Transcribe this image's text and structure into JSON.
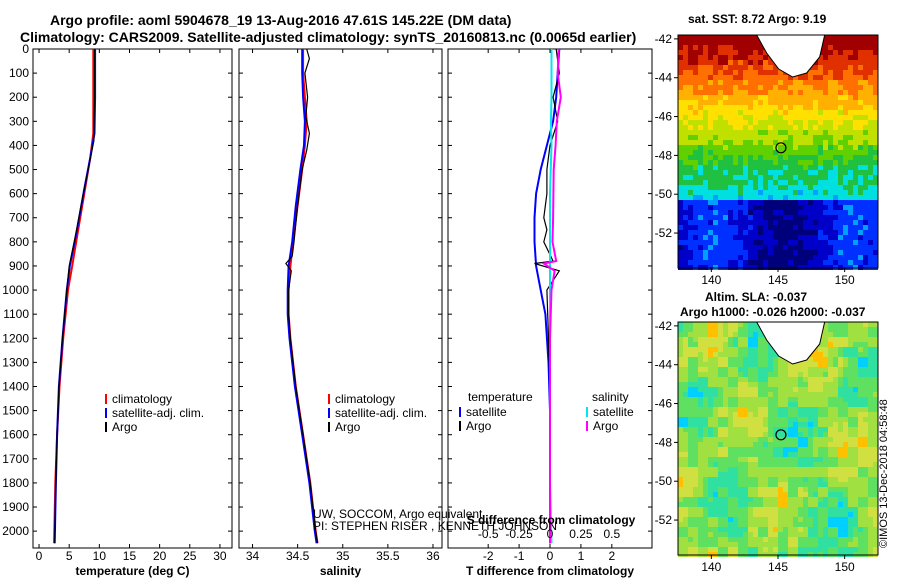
{
  "header": {
    "title_line1": "Argo profile: aoml 5904678_19 13-Aug-2016 47.61S 145.22E (DM data)",
    "title_line2": "Climatology: CARS2009. Satellite-adjusted climatology: synTS_20160813.nc (0.0065d earlier)"
  },
  "side": {
    "sst_title": "sat. SST: 8.72 Argo: 9.19",
    "sla_title1": "Altim. SLA: -0.037",
    "sla_title2": "Argo h1000: -0.026 h2000: -0.037"
  },
  "stamp": "©IMOS 13-Dec-2018 04:58:48",
  "notes": {
    "line1": "UW, SOCCOM, Argo equivalent",
    "line2": "PI: STEPHEN RISER , KENNETH JOHNSON"
  },
  "legends": {
    "temp": [
      "climatology",
      "satellite-adj. clim.",
      "Argo"
    ],
    "sal": [
      "climatology",
      "satellite-adj. clim.",
      "Argo"
    ],
    "diff_temp_header": "temperature",
    "diff_sal_header": "salinity",
    "diff_temp": [
      "satellite",
      "Argo"
    ],
    "diff_sal": [
      "satellite",
      "Argo"
    ]
  },
  "colors": {
    "climatology": "#ff0000",
    "satellite": "#0000ff",
    "argo": "#000000",
    "sal_satellite": "#00e5ee",
    "sal_argo": "#ff00ff"
  },
  "chart_data": [
    {
      "type": "line",
      "name": "temperature",
      "xlabel": "temperature (deg C)",
      "xlim": [
        -1,
        32
      ],
      "ylim": [
        2070,
        0
      ],
      "xticks": [
        0,
        5,
        10,
        15,
        20,
        25,
        30
      ],
      "xtick_labels": [
        "0",
        "5",
        "10",
        "15",
        "20",
        "25",
        "30"
      ],
      "yticks": [
        0,
        100,
        200,
        300,
        400,
        500,
        600,
        700,
        800,
        900,
        1000,
        1100,
        1200,
        1300,
        1400,
        1500,
        1600,
        1700,
        1800,
        1900,
        2000
      ],
      "series": [
        {
          "key": "climatology",
          "points": [
            [
              9.0,
              0
            ],
            [
              9.0,
              200
            ],
            [
              9.0,
              350
            ],
            [
              8.5,
              450
            ],
            [
              7.5,
              600
            ],
            [
              6.5,
              750
            ],
            [
              5.5,
              900
            ],
            [
              4.8,
              1000
            ],
            [
              4.0,
              1200
            ],
            [
              3.4,
              1400
            ],
            [
              3.0,
              1600
            ],
            [
              2.7,
              1800
            ],
            [
              2.5,
              2050
            ]
          ]
        },
        {
          "key": "satellite",
          "points": [
            [
              9.3,
              0
            ],
            [
              9.3,
              200
            ],
            [
              9.2,
              350
            ],
            [
              8.5,
              450
            ],
            [
              7.5,
              580
            ],
            [
              6.3,
              750
            ],
            [
              5.1,
              900
            ],
            [
              4.6,
              1000
            ],
            [
              3.9,
              1200
            ],
            [
              3.3,
              1400
            ],
            [
              3.0,
              1600
            ],
            [
              2.8,
              1800
            ],
            [
              2.6,
              2050
            ]
          ]
        },
        {
          "key": "argo",
          "points": [
            [
              9.2,
              0
            ],
            [
              9.2,
              200
            ],
            [
              9.1,
              380
            ],
            [
              8.3,
              480
            ],
            [
              7.2,
              620
            ],
            [
              6.0,
              780
            ],
            [
              5.0,
              900
            ],
            [
              4.6,
              1000
            ],
            [
              3.9,
              1200
            ],
            [
              3.3,
              1400
            ],
            [
              3.0,
              1600
            ],
            [
              2.8,
              1800
            ],
            [
              2.6,
              2050
            ]
          ]
        }
      ]
    },
    {
      "type": "line",
      "name": "salinity",
      "xlabel": "salinity",
      "xlim": [
        33.85,
        36.1
      ],
      "ylim": [
        2070,
        0
      ],
      "xticks": [
        34,
        34.5,
        35,
        35.5,
        36
      ],
      "xtick_labels": [
        "34",
        "34.5",
        "35",
        "35.5",
        "36"
      ],
      "series": [
        {
          "key": "climatology",
          "points": [
            [
              34.56,
              0
            ],
            [
              34.56,
              100
            ],
            [
              34.58,
              200
            ],
            [
              34.6,
              300
            ],
            [
              34.58,
              400
            ],
            [
              34.55,
              500
            ],
            [
              34.5,
              650
            ],
            [
              34.45,
              800
            ],
            [
              34.42,
              900
            ],
            [
              34.4,
              1000
            ],
            [
              34.4,
              1100
            ],
            [
              34.42,
              1200
            ],
            [
              34.48,
              1400
            ],
            [
              34.56,
              1600
            ],
            [
              34.64,
              1800
            ],
            [
              34.7,
              2000
            ],
            [
              34.72,
              2050
            ]
          ]
        },
        {
          "key": "satellite",
          "points": [
            [
              34.55,
              0
            ],
            [
              34.55,
              100
            ],
            [
              34.56,
              200
            ],
            [
              34.58,
              300
            ],
            [
              34.57,
              400
            ],
            [
              34.53,
              500
            ],
            [
              34.48,
              650
            ],
            [
              34.44,
              800
            ],
            [
              34.4,
              900
            ],
            [
              34.39,
              1000
            ],
            [
              34.39,
              1100
            ],
            [
              34.41,
              1200
            ],
            [
              34.47,
              1400
            ],
            [
              34.55,
              1600
            ],
            [
              34.63,
              1800
            ],
            [
              34.69,
              2000
            ],
            [
              34.71,
              2050
            ]
          ]
        },
        {
          "key": "argo",
          "points": [
            [
              34.6,
              0
            ],
            [
              34.63,
              40
            ],
            [
              34.58,
              100
            ],
            [
              34.61,
              200
            ],
            [
              34.59,
              280
            ],
            [
              34.63,
              350
            ],
            [
              34.6,
              420
            ],
            [
              34.55,
              500
            ],
            [
              34.5,
              650
            ],
            [
              34.46,
              800
            ],
            [
              34.44,
              860
            ],
            [
              34.37,
              890
            ],
            [
              34.43,
              920
            ],
            [
              34.4,
              1000
            ],
            [
              34.4,
              1100
            ],
            [
              34.42,
              1200
            ],
            [
              34.48,
              1400
            ],
            [
              34.56,
              1600
            ],
            [
              34.64,
              1800
            ],
            [
              34.7,
              2000
            ],
            [
              34.72,
              2050
            ]
          ]
        }
      ]
    },
    {
      "type": "line",
      "name": "difference",
      "xlabel": "T difference from climatology",
      "top_label": "S difference from climatology",
      "xlim": [
        -3.3,
        3.3
      ],
      "ylim": [
        2070,
        0
      ],
      "xticks": [
        -2,
        -1,
        0,
        1,
        2
      ],
      "xtick_labels": [
        "-2",
        "-1",
        "0",
        "1",
        "2"
      ],
      "top_ticks": [
        -0.5,
        -0.25,
        0,
        0.25,
        0.5
      ],
      "top_tick_labels": [
        "-0.5",
        "-0.25",
        "0",
        "0.25",
        "0.5"
      ],
      "series": [
        {
          "key": "satellite",
          "points": [
            [
              0.3,
              0
            ],
            [
              0.25,
              100
            ],
            [
              0.2,
              200
            ],
            [
              0.1,
              300
            ],
            [
              -0.1,
              400
            ],
            [
              -0.3,
              500
            ],
            [
              -0.45,
              600
            ],
            [
              -0.5,
              700
            ],
            [
              -0.5,
              800
            ],
            [
              -0.45,
              900
            ],
            [
              -0.3,
              1000
            ],
            [
              -0.15,
              1100
            ],
            [
              -0.05,
              1300
            ],
            [
              0,
              1500
            ],
            [
              0,
              2050
            ]
          ]
        },
        {
          "key": "argo",
          "points": [
            [
              0.2,
              0
            ],
            [
              0.3,
              100
            ],
            [
              0.1,
              200
            ],
            [
              0.25,
              300
            ],
            [
              0,
              400
            ],
            [
              -0.1,
              500
            ],
            [
              -0.1,
              600
            ],
            [
              -0.2,
              700
            ],
            [
              -0.1,
              750
            ],
            [
              -0.2,
              800
            ],
            [
              0.1,
              880
            ],
            [
              -0.5,
              890
            ],
            [
              0.3,
              920
            ],
            [
              -0.1,
              1000
            ],
            [
              -0.05,
              1200
            ],
            [
              0,
              1400
            ],
            [
              0,
              2050
            ]
          ]
        },
        {
          "key": "sal_satellite",
          "points": [
            [
              0.05,
              0
            ],
            [
              0.05,
              100
            ],
            [
              0.05,
              200
            ],
            [
              0.03,
              300
            ],
            [
              0.05,
              400
            ],
            [
              0.0,
              600
            ],
            [
              0.0,
              900
            ],
            [
              0.0,
              1200
            ],
            [
              0.0,
              1500
            ],
            [
              0.0,
              1800
            ],
            [
              0.05,
              2050
            ]
          ]
        },
        {
          "key": "sal_argo",
          "points": [
            [
              0.28,
              0
            ],
            [
              0.25,
              100
            ],
            [
              0.35,
              200
            ],
            [
              0.22,
              300
            ],
            [
              0.18,
              400
            ],
            [
              0.12,
              500
            ],
            [
              0.1,
              700
            ],
            [
              0.08,
              800
            ],
            [
              0.2,
              880
            ],
            [
              -0.2,
              890
            ],
            [
              0.15,
              920
            ],
            [
              0.05,
              1000
            ],
            [
              0.0,
              1200
            ],
            [
              0.0,
              1500
            ],
            [
              0.0,
              2050
            ]
          ]
        }
      ]
    },
    {
      "type": "heatmap",
      "name": "sst_map",
      "xticks": [
        "140",
        "145",
        "150"
      ],
      "yticks": [
        "-42",
        "-44",
        "-46",
        "-48",
        "-50",
        "-52"
      ],
      "xlim": [
        137.5,
        152.5
      ],
      "ylim": [
        -53.8,
        -41.8
      ],
      "marker": {
        "lon": 145.22,
        "lat": -47.61
      }
    },
    {
      "type": "heatmap",
      "name": "sla_map",
      "xticks": [
        "140",
        "145",
        "150"
      ],
      "yticks": [
        "-42",
        "-44",
        "-46",
        "-48",
        "-50",
        "-52"
      ],
      "xlim": [
        137.5,
        152.5
      ],
      "ylim": [
        -53.8,
        -41.8
      ],
      "marker": {
        "lon": 145.22,
        "lat": -47.61
      }
    }
  ]
}
